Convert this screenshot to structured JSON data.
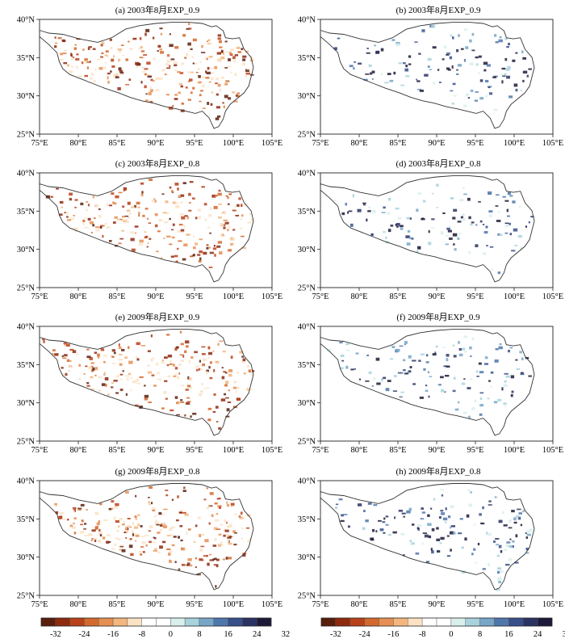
{
  "panels": [
    {
      "id": "a",
      "title": "(a) 2003年8月EXP_0.9"
    },
    {
      "id": "b",
      "title": "(b) 2003年8月EXP_0.9"
    },
    {
      "id": "c",
      "title": "(c) 2003年8月EXP_0.8"
    },
    {
      "id": "d",
      "title": "(d) 2003年8月EXP_0.8"
    },
    {
      "id": "e",
      "title": "(e) 2009年8月EXP_0.9"
    },
    {
      "id": "f",
      "title": "(f) 2009年8月EXP_0.9"
    },
    {
      "id": "g",
      "title": "(g) 2009年8月EXP_0.8"
    },
    {
      "id": "h",
      "title": "(h) 2009年8月EXP_0.8"
    }
  ],
  "axes": {
    "lon_ticks": [
      "75°E",
      "80°E",
      "85°E",
      "90°E",
      "95°E",
      "100°E",
      "105°E"
    ],
    "lat_ticks": [
      "40°N",
      "35°N",
      "30°N",
      "25°N"
    ]
  },
  "colorbar": {
    "tick_labels": [
      "-32",
      "-24",
      "-16",
      "-8",
      "0",
      "8",
      "16",
      "24",
      "32"
    ],
    "colors": [
      "#5a1e0c",
      "#8e2a10",
      "#b8421a",
      "#d26a2e",
      "#e58f52",
      "#f2b67e",
      "#fbe2c4",
      "#ffffff",
      "#ffffff",
      "#d8efec",
      "#a8d2dc",
      "#77a6c7",
      "#4f77ac",
      "#37508a",
      "#2a3362",
      "#1c1a38"
    ]
  }
}
